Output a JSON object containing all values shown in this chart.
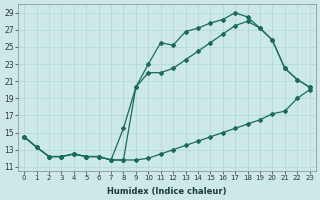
{
  "xlabel": "Humidex (Indice chaleur)",
  "bg_color": "#cce8e8",
  "line_color": "#1a6b5a",
  "grid_color": "#b0d8d8",
  "xlim": [
    -0.5,
    23.5
  ],
  "ylim": [
    10.5,
    30
  ],
  "yticks": [
    11,
    13,
    15,
    17,
    19,
    21,
    23,
    25,
    27,
    29
  ],
  "xticks": [
    0,
    1,
    2,
    3,
    4,
    5,
    6,
    7,
    8,
    9,
    10,
    11,
    12,
    13,
    14,
    15,
    16,
    17,
    18,
    19,
    20,
    21,
    22,
    23
  ],
  "line_bottom_x": [
    0,
    1,
    2,
    3,
    4,
    5,
    6,
    7,
    8,
    9,
    10,
    11,
    12,
    13,
    14,
    15,
    16,
    17,
    18,
    19,
    20,
    21,
    22,
    23
  ],
  "line_bottom_y": [
    14.5,
    13.3,
    12.2,
    12.2,
    12.5,
    12.2,
    12.2,
    11.8,
    11.8,
    11.8,
    12.0,
    12.5,
    13.0,
    13.5,
    14.0,
    14.5,
    15.0,
    15.5,
    16.0,
    16.5,
    17.2,
    17.5,
    19.0,
    20.0
  ],
  "line_mid_x": [
    0,
    1,
    2,
    3,
    4,
    5,
    6,
    7,
    8,
    9,
    10,
    11,
    12,
    13,
    14,
    15,
    16,
    17,
    18,
    19,
    20,
    21,
    22,
    23
  ],
  "line_mid_y": [
    14.5,
    13.3,
    12.2,
    12.2,
    12.5,
    12.2,
    12.2,
    11.8,
    15.5,
    20.3,
    22.0,
    22.0,
    22.5,
    23.5,
    24.5,
    25.5,
    26.5,
    27.5,
    28.0,
    27.2,
    25.8,
    22.5,
    21.2,
    20.3
  ],
  "line_top_x": [
    0,
    1,
    2,
    3,
    4,
    5,
    6,
    7,
    8,
    9,
    10,
    11,
    12,
    13,
    14,
    15,
    16,
    17,
    18,
    19,
    20,
    21,
    22,
    23
  ],
  "line_top_y": [
    14.5,
    13.3,
    12.2,
    12.2,
    12.5,
    12.2,
    12.2,
    11.8,
    11.8,
    20.3,
    23.0,
    25.5,
    25.2,
    26.8,
    27.2,
    27.8,
    28.2,
    29.0,
    28.5,
    27.2,
    25.8,
    22.5,
    21.2,
    20.3
  ]
}
